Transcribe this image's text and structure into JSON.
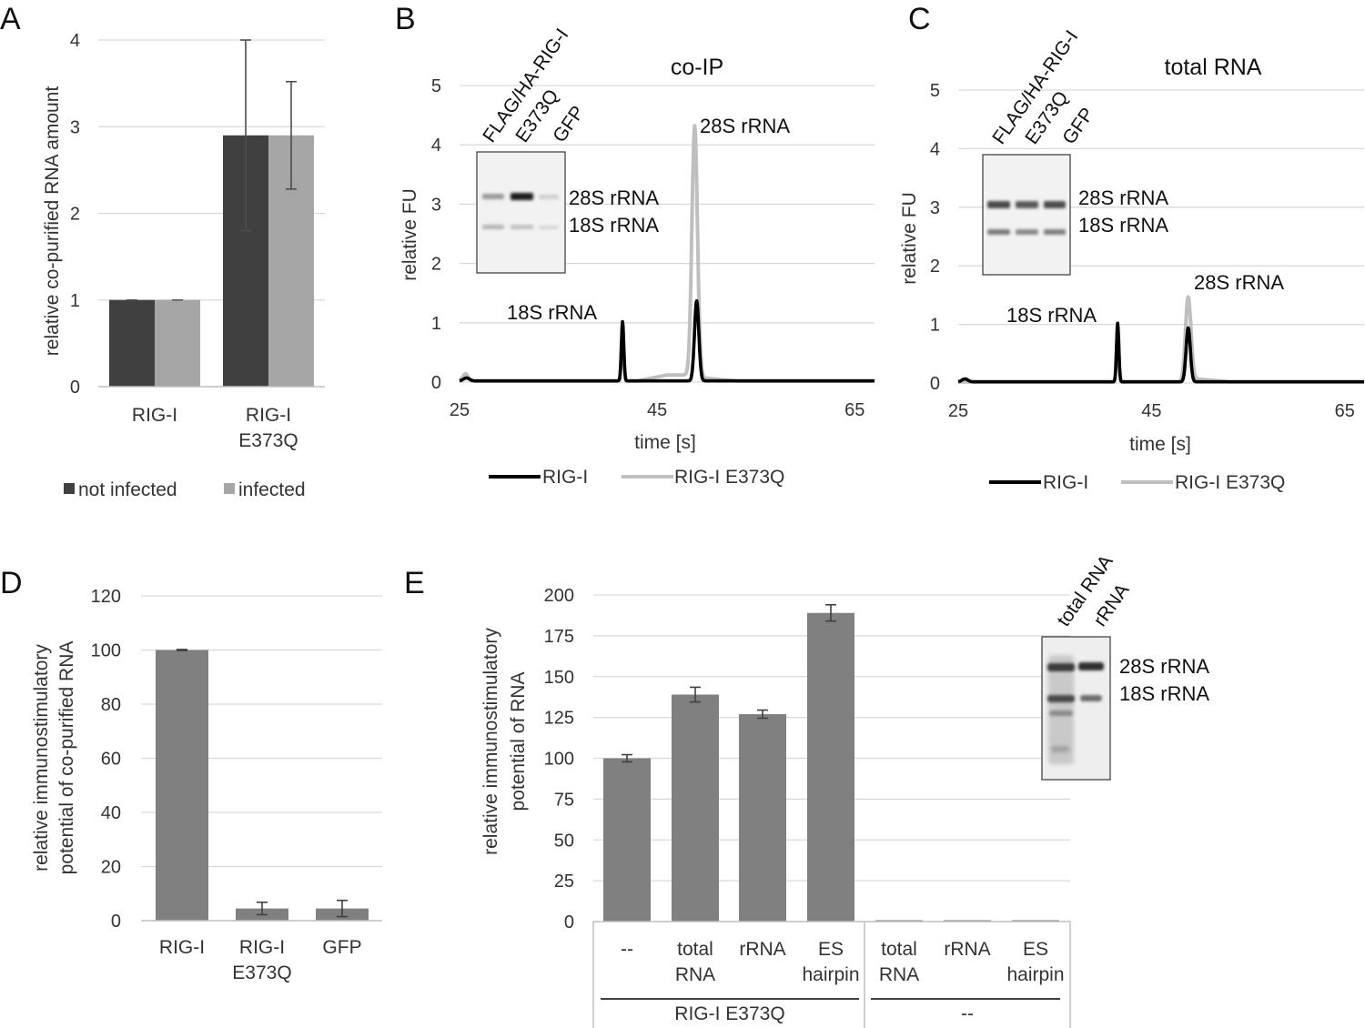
{
  "panels": {
    "A": "A",
    "B": "B",
    "C": "C",
    "D": "D",
    "E": "E"
  },
  "colors": {
    "not_infected": "#404040",
    "infected": "#a6a6a6",
    "bar_gray": "#808080",
    "rig_i": "#000000",
    "e373q": "#bfbfbf"
  },
  "chart_data": [
    {
      "panel": "A",
      "type": "bar",
      "title": "",
      "xlabel": "",
      "ylabel": "relative co-purified RNA amount",
      "ylim": [
        0,
        4
      ],
      "yticks": [
        0,
        1,
        2,
        3,
        4
      ],
      "ytick_labels": [
        "0",
        "1",
        "2",
        "3",
        "4"
      ],
      "categories": [
        [
          "RIG-I"
        ],
        [
          "RIG-I",
          "E373Q"
        ]
      ],
      "series": [
        {
          "name": "not infected",
          "values": [
            1.0,
            2.9
          ],
          "errors": [
            0.0,
            1.1
          ]
        },
        {
          "name": "infected",
          "values": [
            1.0,
            2.9
          ],
          "errors": [
            0.0,
            0.62
          ]
        }
      ],
      "legend": [
        "not infected",
        "infected"
      ]
    },
    {
      "panel": "B",
      "type": "line",
      "title": "co-IP",
      "xlabel": "time [s]",
      "ylabel": "relative FU",
      "xlim": [
        25,
        67
      ],
      "ylim": [
        0,
        5
      ],
      "xticks": [
        25,
        45,
        65
      ],
      "xtick_labels": [
        "25",
        "45",
        "65"
      ],
      "yticks": [
        0,
        1,
        2,
        3,
        4,
        5
      ],
      "ytick_labels": [
        "0",
        "1",
        "2",
        "3",
        "4",
        "5"
      ],
      "series": [
        {
          "name": "RIG-I",
          "peaks": [
            {
              "x": 41.5,
              "y": 1.0
            },
            {
              "x": 49.0,
              "y": 1.35
            }
          ]
        },
        {
          "name": "RIG-I E373Q",
          "peaks": [
            {
              "x": 41.5,
              "y": 0.9
            },
            {
              "x": 48.8,
              "y": 4.2
            }
          ]
        }
      ],
      "annotations": [
        "18S rRNA",
        "28S rRNA"
      ],
      "inset": {
        "lanes": [
          "FLAG/HA-RIG-I",
          "E373Q",
          "GFP"
        ],
        "bands": [
          "28S rRNA",
          "18S rRNA"
        ]
      },
      "legend": [
        "RIG-I",
        "RIG-I E373Q"
      ]
    },
    {
      "panel": "C",
      "type": "line",
      "title": "total RNA",
      "xlabel": "time [s]",
      "ylabel": "relative FU",
      "xlim": [
        25,
        67
      ],
      "ylim": [
        0,
        5
      ],
      "xticks": [
        25,
        45,
        65
      ],
      "xtick_labels": [
        "25",
        "45",
        "65"
      ],
      "yticks": [
        0,
        1,
        2,
        3,
        4,
        5
      ],
      "ytick_labels": [
        "0",
        "1",
        "2",
        "3",
        "4",
        "5"
      ],
      "series": [
        {
          "name": "RIG-I",
          "peaks": [
            {
              "x": 41.5,
              "y": 1.0
            },
            {
              "x": 48.8,
              "y": 0.92
            }
          ]
        },
        {
          "name": "RIG-I E373Q",
          "peaks": [
            {
              "x": 41.5,
              "y": 0.9
            },
            {
              "x": 48.8,
              "y": 1.45
            }
          ]
        }
      ],
      "annotations": [
        "18S rRNA",
        "28S rRNA"
      ],
      "inset": {
        "lanes": [
          "FLAG/HA-RIG-I",
          "E373Q",
          "GFP"
        ],
        "bands": [
          "28S rRNA",
          "18S rRNA"
        ]
      },
      "legend": [
        "RIG-I",
        "RIG-I E373Q"
      ]
    },
    {
      "panel": "D",
      "type": "bar",
      "title": "",
      "xlabel": "",
      "ylabel": [
        "relative immunostimulatory",
        "potential of co-purified RNA"
      ],
      "ylim": [
        0,
        120
      ],
      "yticks": [
        0,
        20,
        40,
        60,
        80,
        100,
        120
      ],
      "ytick_labels": [
        "0",
        "20",
        "40",
        "60",
        "80",
        "100",
        "120"
      ],
      "categories": [
        [
          "RIG-I"
        ],
        [
          "RIG-I",
          "E373Q"
        ],
        [
          "GFP"
        ]
      ],
      "values": [
        100,
        4.5,
        4.5
      ],
      "errors": [
        0.2,
        2.3,
        3.0
      ]
    },
    {
      "panel": "E",
      "type": "bar",
      "title": "",
      "xlabel": "",
      "ylabel": [
        "relative immunostimulatory",
        "potential of RNA"
      ],
      "ylim": [
        0,
        200
      ],
      "yticks": [
        0,
        25,
        50,
        75,
        100,
        125,
        150,
        175,
        200
      ],
      "ytick_labels": [
        "0",
        "25",
        "50",
        "75",
        "100",
        "125",
        "150",
        "175",
        "200"
      ],
      "categories": [
        [
          "--"
        ],
        [
          "total",
          "RNA"
        ],
        [
          "rRNA"
        ],
        [
          "ES",
          "hairpin"
        ],
        [
          "total",
          "RNA"
        ],
        [
          "rRNA"
        ],
        [
          "ES",
          "hairpin"
        ]
      ],
      "values": [
        100,
        139,
        127,
        189,
        0.3,
        0.3,
        0.3
      ],
      "errors": [
        2.2,
        4.5,
        2.5,
        5.0,
        0,
        0,
        0
      ],
      "groups": [
        {
          "label": "RIG-I E373Q"
        },
        {
          "label": "--"
        }
      ],
      "inset": {
        "lanes": [
          "total RNA",
          "rRNA"
        ],
        "bands": [
          "28S rRNA",
          "18S rRNA"
        ]
      }
    }
  ]
}
